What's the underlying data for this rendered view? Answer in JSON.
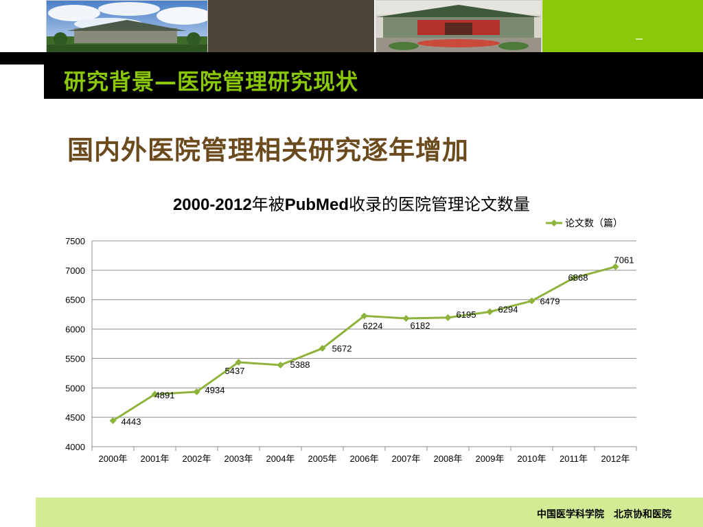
{
  "header": {
    "section_title": "研究背景—医院管理研究现状",
    "colors": {
      "accent_green": "#8cc80a",
      "dark": "#4a4536",
      "footer_green": "#d3eb95"
    }
  },
  "slide": {
    "heading": "国内外医院管理相关研究逐年增加"
  },
  "chart_title": {
    "years": "2000-2012",
    "text1": "年被",
    "pubmed": "PubMed",
    "text2": "收录的医院管理论文数量"
  },
  "chart_data": {
    "type": "line",
    "categories": [
      "2000年",
      "2001年",
      "2002年",
      "2003年",
      "2004年",
      "2005年",
      "2006年",
      "2007年",
      "2008年",
      "2009年",
      "2010年",
      "2011年",
      "2012年"
    ],
    "series": [
      {
        "name": "论文数（篇）",
        "values": [
          4443,
          4891,
          4934,
          5437,
          5388,
          5672,
          6224,
          6182,
          6195,
          6294,
          6479,
          6868,
          7061
        ],
        "color": "#8db33a"
      }
    ],
    "ylim": [
      4000,
      7500
    ],
    "yticks": [
      4000,
      4500,
      5000,
      5500,
      6000,
      6500,
      7000,
      7500
    ],
    "grid": true,
    "legend": "top-right"
  },
  "footer": {
    "text": "中国医学科学院　北京协和医院"
  }
}
